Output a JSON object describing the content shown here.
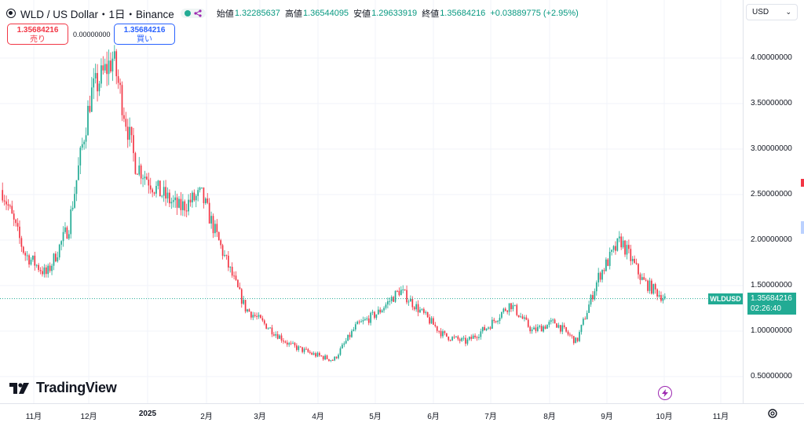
{
  "legend": {
    "title": "WLD / US Dollar・1日・Binance",
    "open_label": "始値",
    "open": "1.32285637",
    "high_label": "高値",
    "high": "1.36544095",
    "low_label": "安値",
    "low": "1.29633919",
    "close_label": "終値",
    "close": "1.35684216",
    "change": "+0.03889775 (+2.95%)"
  },
  "trade": {
    "sell_price": "1.35684216",
    "sell_label": "売り",
    "spread": "0.00000000",
    "buy_price": "1.35684216",
    "buy_label": "買い"
  },
  "currency": "USD",
  "price_axis": {
    "ticks": [
      "4.00000000",
      "3.50000000",
      "3.00000000",
      "2.50000000",
      "2.00000000",
      "1.50000000",
      "1.00000000",
      "0.50000000"
    ]
  },
  "time_axis": {
    "labels": [
      "11月",
      "12月",
      "2025",
      "2月",
      "3月",
      "4月",
      "5月",
      "6月",
      "7月",
      "8月",
      "9月",
      "10月",
      "11月"
    ]
  },
  "current": {
    "symbol": "WLDUSD",
    "price": "1.35684216",
    "countdown": "02:26:40"
  },
  "logo_text": "TradingView",
  "colors": {
    "up": "#22ab94",
    "down": "#f23645",
    "accent": "#2962ff"
  },
  "chart_data": {
    "type": "candlestick",
    "series": [
      {
        "name": "WLDUSD",
        "interval": "1D",
        "exchange": "Binance"
      }
    ],
    "ylim": [
      0.4,
      4.3
    ],
    "x": [
      "10月",
      "11月",
      "12月",
      "2025",
      "2月",
      "3月",
      "4月",
      "5月",
      "6月",
      "7月",
      "8月",
      "9月",
      "10月"
    ],
    "close_anchor_points": [
      [
        "10月",
        2.55
      ],
      [
        "11月 early",
        1.85
      ],
      [
        "11月 mid",
        1.62
      ],
      [
        "11月 late",
        2.15
      ],
      [
        "12月 early",
        3.6
      ],
      [
        "12月 peak",
        4.0
      ],
      [
        "12月 late",
        2.85
      ],
      [
        "2025 start",
        2.55
      ],
      [
        "1月",
        2.35
      ],
      [
        "1月 late",
        2.5
      ],
      [
        "2月",
        1.85
      ],
      [
        "2月 late",
        1.25
      ],
      [
        "3月",
        1.05
      ],
      [
        "3月 mid",
        0.85
      ],
      [
        "4月",
        0.75
      ],
      [
        "4月 mid",
        0.68
      ],
      [
        "5月",
        1.05
      ],
      [
        "5月 mid",
        1.2
      ],
      [
        "5月 late",
        1.45
      ],
      [
        "6月",
        1.2
      ],
      [
        "6月 mid",
        0.95
      ],
      [
        "7月",
        0.88
      ],
      [
        "7月 mid",
        1.05
      ],
      [
        "7月 late",
        1.3
      ],
      [
        "8月",
        1.0
      ],
      [
        "8月 mid",
        1.1
      ],
      [
        "9月",
        0.88
      ],
      [
        "9月 early",
        1.6
      ],
      [
        "9月 mid",
        2.0
      ],
      [
        "9月 late",
        1.55
      ],
      [
        "10月 now",
        1.357
      ]
    ]
  }
}
